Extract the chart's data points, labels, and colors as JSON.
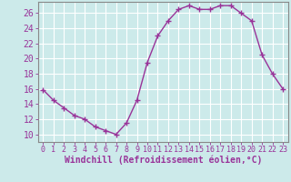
{
  "x": [
    0,
    1,
    2,
    3,
    4,
    5,
    6,
    7,
    8,
    9,
    10,
    11,
    12,
    13,
    14,
    15,
    16,
    17,
    18,
    19,
    20,
    21,
    22,
    23
  ],
  "y": [
    15.9,
    14.5,
    13.5,
    12.5,
    12.0,
    11.0,
    10.5,
    10.0,
    11.5,
    14.5,
    19.5,
    23.0,
    25.0,
    26.5,
    27.0,
    26.5,
    26.5,
    27.0,
    27.0,
    26.0,
    25.0,
    20.5,
    18.0,
    16.0
  ],
  "line_color": "#993399",
  "marker": "+",
  "marker_size": 4,
  "linewidth": 1.0,
  "xlabel": "Windchill (Refroidissement éolien,°C)",
  "xlabel_fontsize": 7,
  "ylabel_ticks": [
    10,
    12,
    14,
    16,
    18,
    20,
    22,
    24,
    26
  ],
  "ylim": [
    9.0,
    27.5
  ],
  "xlim": [
    -0.5,
    23.5
  ],
  "xtick_labels": [
    "0",
    "1",
    "2",
    "3",
    "4",
    "5",
    "6",
    "7",
    "8",
    "9",
    "10",
    "11",
    "12",
    "13",
    "14",
    "15",
    "16",
    "17",
    "18",
    "19",
    "20",
    "21",
    "22",
    "23"
  ],
  "bg_color": "#cceaea",
  "grid_color": "#ffffff",
  "tick_fontsize": 7,
  "spine_color": "#888888",
  "marker_edge_width": 1.0
}
